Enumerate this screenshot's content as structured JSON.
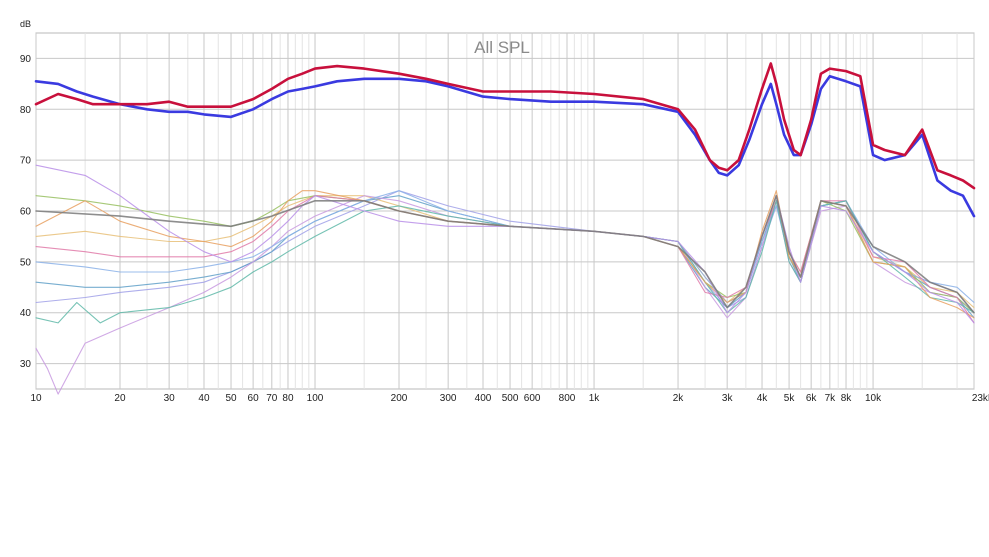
{
  "chart_data": {
    "type": "line",
    "title": "All SPL",
    "y_unit": "dB",
    "x_unit_suffix": "kHz",
    "x_scale": "log",
    "xlim": [
      10,
      23000
    ],
    "ylim": [
      25,
      95
    ],
    "grid": true,
    "x_ticks": [
      {
        "value": 10,
        "label": "10"
      },
      {
        "value": 20,
        "label": "20"
      },
      {
        "value": 30,
        "label": "30"
      },
      {
        "value": 40,
        "label": "40"
      },
      {
        "value": 50,
        "label": "50"
      },
      {
        "value": 60,
        "label": "60"
      },
      {
        "value": 70,
        "label": "70"
      },
      {
        "value": 80,
        "label": "80"
      },
      {
        "value": 100,
        "label": "100"
      },
      {
        "value": 200,
        "label": "200"
      },
      {
        "value": 300,
        "label": "300"
      },
      {
        "value": 400,
        "label": "400"
      },
      {
        "value": 500,
        "label": "500"
      },
      {
        "value": 600,
        "label": "600"
      },
      {
        "value": 800,
        "label": "800"
      },
      {
        "value": 1000,
        "label": "1k"
      },
      {
        "value": 2000,
        "label": "2k"
      },
      {
        "value": 3000,
        "label": "3k"
      },
      {
        "value": 4000,
        "label": "4k"
      },
      {
        "value": 5000,
        "label": "5k"
      },
      {
        "value": 6000,
        "label": "6k"
      },
      {
        "value": 7000,
        "label": "7k"
      },
      {
        "value": 8000,
        "label": "8k"
      },
      {
        "value": 10000,
        "label": "10k"
      },
      {
        "value": 23000,
        "label": "23kHz"
      }
    ],
    "y_ticks": [
      {
        "value": 30,
        "label": "30"
      },
      {
        "value": 40,
        "label": "40"
      },
      {
        "value": 50,
        "label": "50"
      },
      {
        "value": 60,
        "label": "60"
      },
      {
        "value": 70,
        "label": "70"
      },
      {
        "value": 80,
        "label": "80"
      },
      {
        "value": 90,
        "label": "90"
      }
    ],
    "minor_grid_x": [
      15,
      25,
      35,
      45,
      55,
      65,
      75,
      85,
      90,
      95,
      150,
      250,
      350,
      450,
      550,
      650,
      700,
      750,
      850,
      900,
      950,
      1500,
      2500,
      3500,
      4500,
      5500,
      6500,
      7500,
      8500,
      9000,
      9500,
      15000,
      20000
    ],
    "series": [
      {
        "color": "#c8103c",
        "width": 2.6,
        "x": [
          10,
          12,
          14,
          16,
          20,
          25,
          30,
          35,
          40,
          50,
          60,
          70,
          80,
          90,
          100,
          120,
          150,
          200,
          250,
          300,
          400,
          500,
          700,
          1000,
          1500,
          2000,
          2300,
          2600,
          2800,
          3000,
          3300,
          3600,
          4000,
          4300,
          4500,
          4800,
          5200,
          5500,
          6000,
          6500,
          7000,
          8000,
          9000,
          10000,
          11000,
          13000,
          15000,
          17000,
          19000,
          21000,
          23000
        ],
        "y": [
          81,
          83,
          82,
          81,
          81,
          81,
          81.5,
          80.5,
          80.5,
          80.5,
          82,
          84,
          86,
          87,
          88,
          88.5,
          88,
          87,
          86,
          85,
          83.5,
          83.5,
          83.5,
          83,
          82,
          80,
          76,
          70,
          68.5,
          68,
          70,
          76,
          84,
          89,
          85,
          78,
          72,
          71,
          78,
          87,
          88,
          87.5,
          86.5,
          73,
          72,
          71,
          76,
          68,
          67,
          66,
          64.5
        ]
      },
      {
        "color": "#3a3ae0",
        "width": 2.6,
        "x": [
          10,
          12,
          14,
          16,
          20,
          25,
          30,
          35,
          40,
          50,
          60,
          70,
          80,
          90,
          100,
          120,
          150,
          200,
          250,
          300,
          400,
          500,
          700,
          1000,
          1500,
          2000,
          2300,
          2600,
          2800,
          3000,
          3300,
          3600,
          4000,
          4300,
          4500,
          4800,
          5200,
          5500,
          6000,
          6500,
          7000,
          8000,
          9000,
          10000,
          11000,
          13000,
          15000,
          17000,
          19000,
          21000,
          23000
        ],
        "y": [
          85.5,
          85,
          83.5,
          82.5,
          81,
          80,
          79.5,
          79.5,
          79,
          78.5,
          80,
          82,
          83.5,
          84,
          84.5,
          85.5,
          86,
          86,
          85.5,
          84.5,
          82.5,
          82,
          81.5,
          81.5,
          81,
          79.5,
          75,
          70,
          67.5,
          67,
          69,
          74,
          81,
          85,
          81,
          75,
          71,
          71,
          77,
          84,
          86.5,
          85.5,
          84.5,
          71,
          70,
          71,
          75,
          66,
          64,
          63,
          59
        ]
      },
      {
        "color": "#7a7a7a",
        "width": 1.6,
        "x": [
          10,
          20,
          30,
          50,
          70,
          100,
          150,
          200,
          300,
          500,
          1000,
          1500,
          2000,
          2500,
          3000,
          3500,
          4000,
          4500,
          5000,
          5500,
          6500,
          8000,
          10000,
          13000,
          16000,
          20000,
          23000
        ],
        "y": [
          60,
          59,
          58,
          57,
          59,
          62,
          62,
          60,
          58,
          57,
          56,
          55,
          53,
          48,
          41,
          45,
          55,
          63,
          52,
          47,
          62,
          61,
          53,
          50,
          46,
          44,
          40
        ]
      },
      {
        "color": "#b98ee8",
        "width": 1.1,
        "x": [
          10,
          15,
          20,
          30,
          40,
          50,
          60,
          70,
          80,
          90,
          100,
          150,
          200,
          300,
          500,
          1000,
          1500,
          2000,
          2500,
          3000,
          3500,
          4000,
          4500,
          5000,
          5500,
          6500,
          8000,
          10000,
          13000,
          16000,
          20000,
          23000
        ],
        "y": [
          69,
          67,
          63,
          56,
          52,
          50,
          52,
          55,
          58,
          61,
          63,
          60,
          58,
          57,
          57,
          56,
          55,
          54,
          48,
          40,
          44,
          55,
          63,
          53,
          46,
          61,
          60,
          52,
          48,
          44,
          42,
          38
        ]
      },
      {
        "color": "#e8a060",
        "width": 1.1,
        "x": [
          10,
          15,
          20,
          30,
          40,
          50,
          60,
          70,
          80,
          90,
          100,
          150,
          200,
          300,
          500,
          1000,
          1500,
          2000,
          2500,
          3000,
          3500,
          4000,
          4500,
          5000,
          5500,
          6500,
          8000,
          10000,
          13000,
          16000,
          20000,
          23000
        ],
        "y": [
          57,
          62,
          58,
          55,
          54,
          53,
          55,
          58,
          62,
          64,
          64,
          62,
          60,
          58,
          57,
          56,
          55,
          53,
          46,
          42,
          44,
          56,
          64,
          51,
          47,
          62,
          61,
          50,
          49,
          43,
          41,
          39
        ]
      },
      {
        "color": "#5fb8a8",
        "width": 1.1,
        "x": [
          10,
          12,
          14,
          17,
          20,
          30,
          40,
          50,
          60,
          70,
          80,
          100,
          150,
          200,
          300,
          500,
          1000,
          1500,
          2000,
          2500,
          3000,
          3500,
          4000,
          4500,
          5000,
          5500,
          6500,
          8000,
          10000,
          13000,
          16000,
          20000,
          23000
        ],
        "y": [
          39,
          38,
          42,
          38,
          40,
          41,
          43,
          45,
          48,
          50,
          52,
          55,
          60,
          61,
          59,
          57,
          56,
          55,
          54,
          46,
          40,
          43,
          52,
          62,
          50,
          46,
          61,
          62,
          52,
          47,
          43,
          42,
          40
        ]
      },
      {
        "color": "#e07aa8",
        "width": 1.1,
        "x": [
          10,
          15,
          20,
          30,
          40,
          50,
          60,
          70,
          80,
          100,
          150,
          200,
          300,
          500,
          1000,
          1500,
          2000,
          2500,
          3000,
          3500,
          4000,
          4500,
          5000,
          5500,
          6500,
          8000,
          10000,
          13000,
          16000,
          20000,
          23000
        ],
        "y": [
          53,
          52,
          51,
          51,
          51,
          52,
          54,
          57,
          60,
          63,
          62,
          60,
          58,
          57,
          56,
          55,
          53,
          44,
          43,
          45,
          55,
          62,
          52,
          48,
          62,
          62,
          51,
          50,
          45,
          43,
          38
        ]
      },
      {
        "color": "#8ab0e8",
        "width": 1.1,
        "x": [
          10,
          15,
          20,
          30,
          40,
          50,
          60,
          70,
          80,
          100,
          150,
          200,
          300,
          500,
          1000,
          1500,
          2000,
          2500,
          3000,
          3500,
          4000,
          4500,
          5000,
          5500,
          6500,
          8000,
          10000,
          13000,
          16000,
          20000,
          23000
        ],
        "y": [
          50,
          49,
          48,
          48,
          49,
          50,
          51,
          53,
          55,
          58,
          62,
          64,
          60,
          57,
          56,
          55,
          54,
          47,
          42,
          44,
          54,
          61,
          52,
          47,
          61,
          62,
          53,
          48,
          46,
          45,
          42
        ]
      },
      {
        "color": "#98c060",
        "width": 1.1,
        "x": [
          10,
          15,
          20,
          30,
          40,
          50,
          60,
          70,
          80,
          100,
          150,
          200,
          300,
          500,
          1000,
          1500,
          2000,
          2500,
          3000,
          3500,
          4000,
          4500,
          5000,
          5500,
          6500,
          8000,
          10000,
          13000,
          16000,
          20000,
          23000
        ],
        "y": [
          63,
          62,
          61,
          59,
          58,
          57,
          58,
          60,
          62,
          63,
          62,
          60,
          58,
          57,
          56,
          55,
          53,
          46,
          43,
          44,
          55,
          63,
          51,
          47,
          62,
          60,
          50,
          49,
          44,
          43,
          40
        ]
      },
      {
        "color": "#c89ae0",
        "width": 1.1,
        "x": [
          10,
          11,
          12,
          15,
          20,
          30,
          40,
          50,
          60,
          70,
          80,
          100,
          150,
          200,
          300,
          500,
          1000,
          1500,
          2000,
          2500,
          3000,
          3500,
          4000,
          4500,
          5000,
          5500,
          6500,
          8000,
          10000,
          13000,
          16000,
          20000,
          23000
        ],
        "y": [
          33,
          29,
          24,
          34,
          37,
          41,
          44,
          47,
          50,
          53,
          56,
          59,
          63,
          62,
          59,
          57,
          56,
          55,
          54,
          45,
          39,
          43,
          53,
          62,
          50,
          46,
          60,
          61,
          50,
          46,
          44,
          43,
          40
        ]
      },
      {
        "color": "#60a0c8",
        "width": 1.1,
        "x": [
          10,
          15,
          20,
          30,
          40,
          50,
          60,
          70,
          80,
          100,
          150,
          200,
          300,
          500,
          1000,
          1500,
          2000,
          2500,
          3000,
          3500,
          4000,
          4500,
          5000,
          5500,
          6500,
          8000,
          10000,
          13000,
          16000,
          20000,
          23000
        ],
        "y": [
          46,
          45,
          45,
          46,
          47,
          48,
          50,
          52,
          55,
          58,
          62,
          63,
          60,
          57,
          56,
          55,
          53,
          45,
          41,
          44,
          54,
          62,
          51,
          46,
          61,
          62,
          52,
          48,
          45,
          43,
          39
        ]
      },
      {
        "color": "#e8c078",
        "width": 1.1,
        "x": [
          10,
          15,
          20,
          30,
          40,
          50,
          60,
          70,
          80,
          100,
          150,
          200,
          300,
          500,
          1000,
          1500,
          2000,
          2500,
          3000,
          3500,
          4000,
          4500,
          5000,
          5500,
          6500,
          8000,
          10000,
          13000,
          16000,
          20000,
          23000
        ],
        "y": [
          55,
          56,
          55,
          54,
          54,
          55,
          57,
          59,
          61,
          63,
          63,
          61,
          58,
          57,
          56,
          55,
          54,
          47,
          42,
          45,
          55,
          63,
          52,
          48,
          62,
          61,
          51,
          49,
          45,
          44,
          41
        ]
      },
      {
        "color": "#a0a0e8",
        "width": 1.1,
        "x": [
          10,
          15,
          20,
          30,
          40,
          50,
          60,
          70,
          80,
          100,
          150,
          200,
          300,
          500,
          1000,
          1500,
          2000,
          2500,
          3000,
          3500,
          4000,
          4500,
          5000,
          5500,
          6500,
          8000,
          10000,
          13000,
          16000,
          20000,
          23000
        ],
        "y": [
          42,
          43,
          44,
          45,
          46,
          48,
          50,
          52,
          54,
          57,
          61,
          64,
          61,
          58,
          56,
          55,
          54,
          46,
          41,
          43,
          53,
          61,
          51,
          47,
          61,
          62,
          52,
          48,
          46,
          44,
          40
        ]
      }
    ]
  }
}
